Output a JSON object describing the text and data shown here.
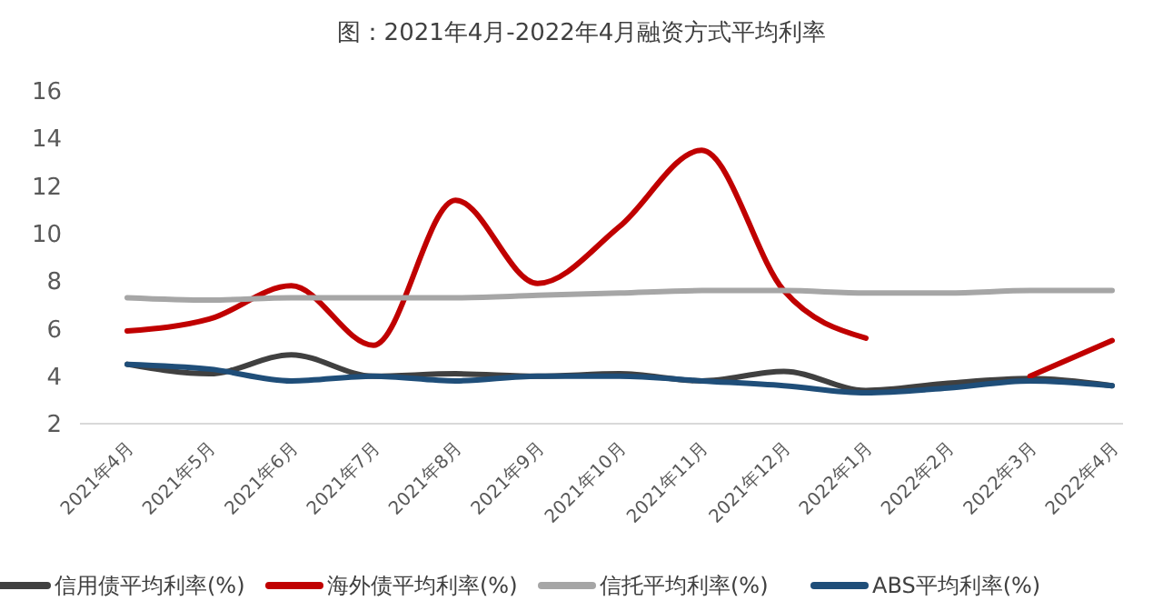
{
  "chart_data": {
    "type": "line",
    "title": "图：2021年4月-2022年4月融资方式平均利率",
    "categories": [
      "2021年4月",
      "2021年5月",
      "2021年6月",
      "2021年7月",
      "2021年8月",
      "2021年9月",
      "2021年10月",
      "2021年11月",
      "2021年12月",
      "2022年1月",
      "2022年2月",
      "2022年3月",
      "2022年4月"
    ],
    "series": [
      {
        "name": "信用债平均利率(%)",
        "color": "#404040",
        "values": [
          4.5,
          4.1,
          4.9,
          4.0,
          4.1,
          4.0,
          4.1,
          3.8,
          4.2,
          3.4,
          3.7,
          3.9,
          3.6
        ]
      },
      {
        "name": "海外债平均利率(%)",
        "color": "#c00000",
        "values": [
          5.9,
          6.4,
          7.8,
          5.3,
          11.4,
          7.9,
          10.3,
          13.5,
          7.6,
          5.6,
          null,
          4.0,
          5.5
        ]
      },
      {
        "name": "信托平均利率(%)",
        "color": "#a6a6a6",
        "values": [
          7.3,
          7.2,
          7.3,
          7.3,
          7.3,
          7.4,
          7.5,
          7.6,
          7.6,
          7.5,
          7.5,
          7.6,
          7.6
        ]
      },
      {
        "name": "ABS平均利率(%)",
        "color": "#1f4e79",
        "values": [
          4.5,
          4.3,
          3.8,
          4.0,
          3.8,
          4.0,
          4.0,
          3.8,
          3.6,
          3.3,
          3.5,
          3.8,
          3.6
        ]
      }
    ],
    "ylim": [
      2,
      16
    ],
    "yticks": [
      2,
      4,
      6,
      8,
      10,
      12,
      14,
      16
    ],
    "grid": false,
    "legend": "bottom",
    "marker": "none",
    "line_style": "solid"
  }
}
